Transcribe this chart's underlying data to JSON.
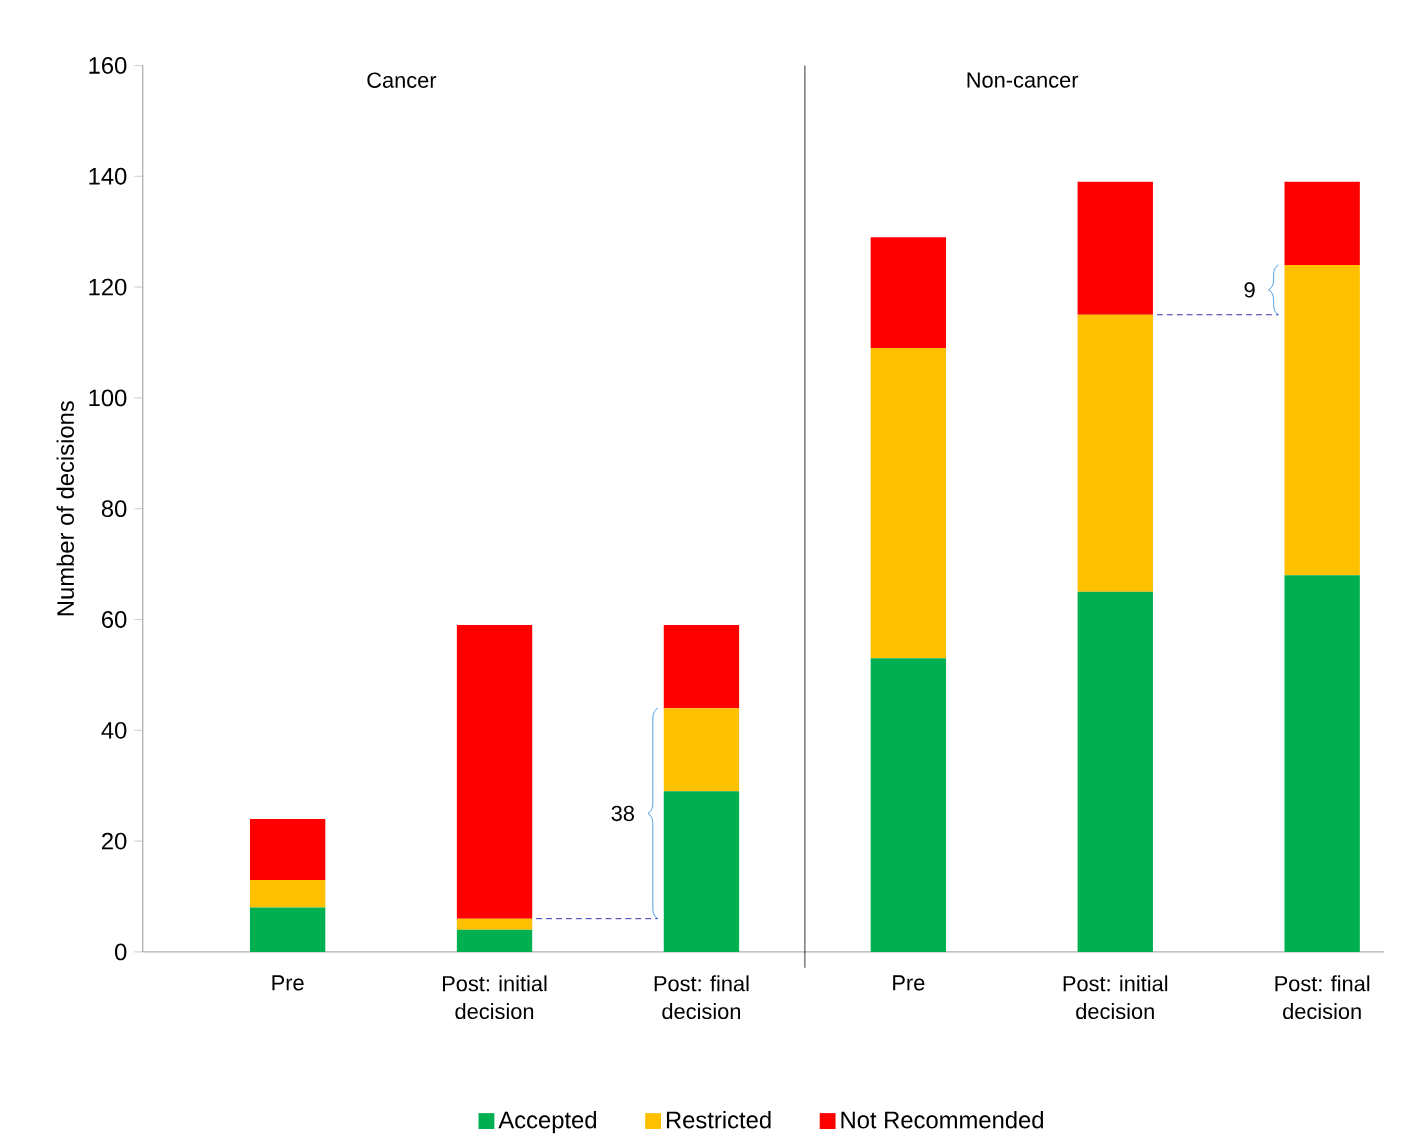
{
  "chart_data": {
    "type": "bar",
    "stacked": true,
    "ylabel": "Number of decisions",
    "categories": [
      "Pre",
      "Post: initial decision",
      "Post: final decision",
      "Pre",
      "Post: initial decision",
      "Post: final decision"
    ],
    "series": [
      {
        "name": "Accepted",
        "color": "#00b050",
        "values": [
          8,
          4,
          29,
          53,
          65,
          68
        ]
      },
      {
        "name": "Restricted",
        "color": "#ffc000",
        "values": [
          5,
          2,
          15,
          56,
          50,
          56
        ]
      },
      {
        "name": "Not Recommended",
        "color": "#ff0000",
        "values": [
          11,
          53,
          15,
          20,
          24,
          15
        ]
      }
    ],
    "ylim": [
      0,
      160
    ],
    "yticks": [
      0,
      20,
      40,
      60,
      80,
      100,
      120,
      140,
      160
    ],
    "annotations": [
      "Cancer",
      "Non-cancer",
      "38",
      "9"
    ],
    "legend": "bottom",
    "grid": false
  }
}
